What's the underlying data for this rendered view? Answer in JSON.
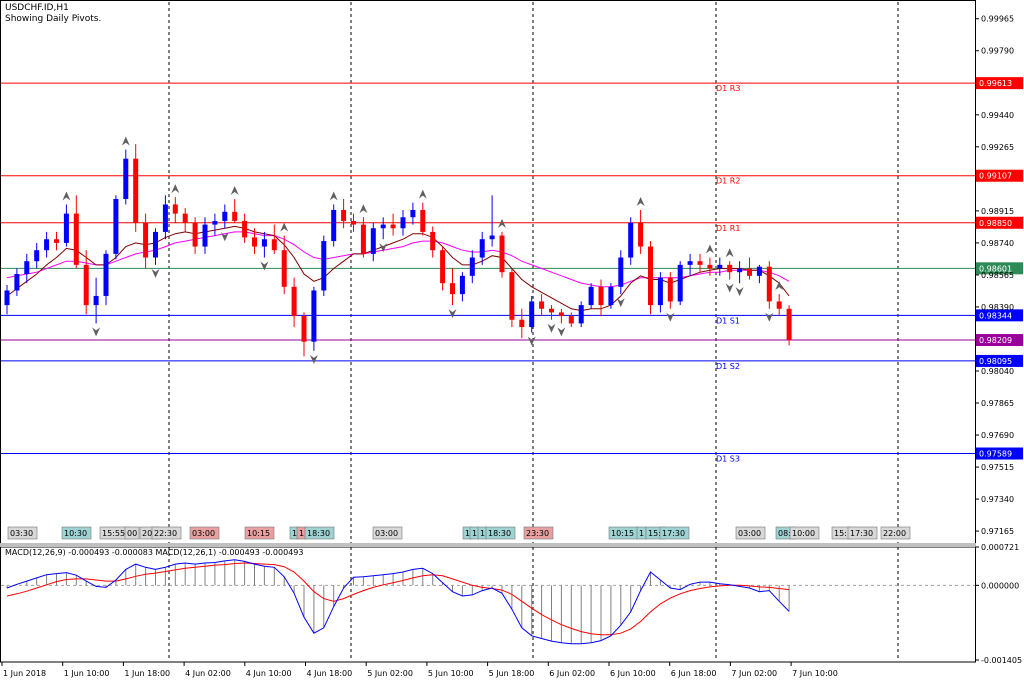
{
  "header": {
    "symbol": "USDCHF.ID,H1",
    "subtitle": "Showing Daily Pivots."
  },
  "price_axis": {
    "ticks": [
      "0.99965",
      "0.99790",
      "0.99440",
      "0.99265",
      "0.98915",
      "0.98740",
      "0.98565",
      "0.98390",
      "0.98040",
      "0.97865",
      "0.97690",
      "0.97515",
      "0.97340",
      "0.97165"
    ]
  },
  "macd_axis": {
    "ticks": [
      "0.000721",
      "0.000000",
      "-0.001405"
    ]
  },
  "time_axis": {
    "labels": [
      "1 Jun 2018",
      "1 Jun 10:00",
      "1 Jun 18:00",
      "4 Jun 02:00",
      "4 Jun 10:00",
      "4 Jun 18:00",
      "5 Jun 02:00",
      "5 Jun 10:00",
      "5 Jun 18:00",
      "6 Jun 02:00",
      "6 Jun 10:00",
      "6 Jun 18:00",
      "7 Jun 02:00",
      "7 Jun 10:00"
    ]
  },
  "pivots": [
    {
      "name": "D1 R3",
      "value": "0.99613",
      "color": "#ff0000"
    },
    {
      "name": "D1 R2",
      "value": "0.99107",
      "color": "#ff0000"
    },
    {
      "name": "D1 R1",
      "value": "0.98850",
      "color": "#ff0000"
    },
    {
      "name": "",
      "value": "0.98601",
      "color": "#2e8b57"
    },
    {
      "name": "D1 S1",
      "value": "0.98344",
      "color": "#0000ff"
    },
    {
      "name": "D1 S2",
      "value": "0.98095",
      "color": "#0000ff"
    },
    {
      "name": "D1 S3",
      "value": "0.97589",
      "color": "#0000ff"
    }
  ],
  "current_price": {
    "value": "0.98209",
    "color": "#990099"
  },
  "session_tags": [
    {
      "text": "03:30",
      "color": "#d8d8d8"
    },
    {
      "text": "10:30",
      "color": "#9fd3d3"
    },
    {
      "text": "15:55",
      "color": "#d8d8d8"
    },
    {
      "text": "00",
      "color": "#d8d8d8"
    },
    {
      "text": "20:",
      "color": "#d8d8d8"
    },
    {
      "text": "22:30",
      "color": "#d8d8d8"
    },
    {
      "text": "03:00",
      "color": "#e8a0a0"
    },
    {
      "text": "10:15",
      "color": "#e8a0a0"
    },
    {
      "text": "1",
      "color": "#9fd3d3"
    },
    {
      "text": "1",
      "color": "#e8a0a0"
    },
    {
      "text": "18:30",
      "color": "#9fd3d3"
    },
    {
      "text": "03:00",
      "color": "#d8d8d8"
    },
    {
      "text": "1",
      "color": "#9fd3d3"
    },
    {
      "text": "1",
      "color": "#9fd3d3"
    },
    {
      "text": "1",
      "color": "#9fd3d3"
    },
    {
      "text": "18:30",
      "color": "#9fd3d3"
    },
    {
      "text": "23:30",
      "color": "#e8a0a0"
    },
    {
      "text": "10:15",
      "color": "#9fd3d3"
    },
    {
      "text": "1",
      "color": "#9fd3d3"
    },
    {
      "text": "15:",
      "color": "#9fd3d3"
    },
    {
      "text": "17:30",
      "color": "#9fd3d3"
    },
    {
      "text": "03:00",
      "color": "#d8d8d8"
    },
    {
      "text": "08:",
      "color": "#9fd3d3"
    },
    {
      "text": "10:00",
      "color": "#d8d8d8"
    },
    {
      "text": "15:",
      "color": "#d8d8d8"
    },
    {
      "text": "17:30",
      "color": "#d8d8d8"
    },
    {
      "text": "22:00",
      "color": "#d8d8d8"
    }
  ],
  "macd": {
    "label": "MACD(12,26,9) -0.000493 -0.000083 MACD(12,26,1) -0.000493 -0.000493",
    "colors": {
      "histogram": "#808080",
      "macd": "#0000ff",
      "signal": "#ff0000"
    }
  },
  "colors": {
    "bull": "#0000ff",
    "bear": "#ff0000",
    "ma_fast": "#800000",
    "ma_slow": "#ff00ff",
    "grid": "#000000"
  },
  "chart_data": {
    "type": "candlestick",
    "timeframe": "H1",
    "ylim": [
      0.971,
      1.0004
    ],
    "candles": [
      {
        "o": 0.984,
        "h": 0.9851,
        "l": 0.9835,
        "c": 0.9848
      },
      {
        "o": 0.9848,
        "h": 0.986,
        "l": 0.9845,
        "c": 0.9857
      },
      {
        "o": 0.9857,
        "h": 0.9868,
        "l": 0.9852,
        "c": 0.9864
      },
      {
        "o": 0.9864,
        "h": 0.9874,
        "l": 0.986,
        "c": 0.987
      },
      {
        "o": 0.987,
        "h": 0.988,
        "l": 0.9866,
        "c": 0.9876
      },
      {
        "o": 0.9876,
        "h": 0.988,
        "l": 0.987,
        "c": 0.9874
      },
      {
        "o": 0.9874,
        "h": 0.9895,
        "l": 0.9872,
        "c": 0.989
      },
      {
        "o": 0.989,
        "h": 0.99,
        "l": 0.986,
        "c": 0.9862
      },
      {
        "o": 0.9862,
        "h": 0.987,
        "l": 0.9835,
        "c": 0.984
      },
      {
        "o": 0.984,
        "h": 0.9855,
        "l": 0.983,
        "c": 0.9845
      },
      {
        "o": 0.9845,
        "h": 0.987,
        "l": 0.984,
        "c": 0.9868
      },
      {
        "o": 0.9868,
        "h": 0.99,
        "l": 0.9865,
        "c": 0.9898
      },
      {
        "o": 0.9898,
        "h": 0.9925,
        "l": 0.9895,
        "c": 0.992
      },
      {
        "o": 0.992,
        "h": 0.9928,
        "l": 0.988,
        "c": 0.9885
      },
      {
        "o": 0.9885,
        "h": 0.989,
        "l": 0.986,
        "c": 0.9866
      },
      {
        "o": 0.9866,
        "h": 0.9882,
        "l": 0.9862,
        "c": 0.988
      },
      {
        "o": 0.988,
        "h": 0.99,
        "l": 0.9876,
        "c": 0.9895
      },
      {
        "o": 0.9895,
        "h": 0.9899,
        "l": 0.9885,
        "c": 0.989
      },
      {
        "o": 0.989,
        "h": 0.9893,
        "l": 0.988,
        "c": 0.9885
      },
      {
        "o": 0.9885,
        "h": 0.9888,
        "l": 0.9868,
        "c": 0.9872
      },
      {
        "o": 0.9872,
        "h": 0.9888,
        "l": 0.9868,
        "c": 0.9884
      },
      {
        "o": 0.9884,
        "h": 0.989,
        "l": 0.9878,
        "c": 0.9886
      },
      {
        "o": 0.9886,
        "h": 0.9895,
        "l": 0.9882,
        "c": 0.9891
      },
      {
        "o": 0.9891,
        "h": 0.9898,
        "l": 0.9885,
        "c": 0.9886
      },
      {
        "o": 0.9886,
        "h": 0.989,
        "l": 0.9874,
        "c": 0.9877
      },
      {
        "o": 0.9877,
        "h": 0.9882,
        "l": 0.9868,
        "c": 0.9872
      },
      {
        "o": 0.9872,
        "h": 0.988,
        "l": 0.9866,
        "c": 0.9876
      },
      {
        "o": 0.9876,
        "h": 0.9884,
        "l": 0.9868,
        "c": 0.987
      },
      {
        "o": 0.987,
        "h": 0.9878,
        "l": 0.9846,
        "c": 0.985
      },
      {
        "o": 0.985,
        "h": 0.9855,
        "l": 0.9828,
        "c": 0.9834
      },
      {
        "o": 0.9834,
        "h": 0.9836,
        "l": 0.9812,
        "c": 0.982
      },
      {
        "o": 0.982,
        "h": 0.985,
        "l": 0.9815,
        "c": 0.9848
      },
      {
        "o": 0.9848,
        "h": 0.9878,
        "l": 0.9845,
        "c": 0.9875
      },
      {
        "o": 0.9875,
        "h": 0.9895,
        "l": 0.9872,
        "c": 0.9892
      },
      {
        "o": 0.9892,
        "h": 0.9898,
        "l": 0.9882,
        "c": 0.9886
      },
      {
        "o": 0.9886,
        "h": 0.989,
        "l": 0.988,
        "c": 0.9884
      },
      {
        "o": 0.9884,
        "h": 0.9888,
        "l": 0.9866,
        "c": 0.9868
      },
      {
        "o": 0.9868,
        "h": 0.9885,
        "l": 0.9864,
        "c": 0.9882
      },
      {
        "o": 0.9882,
        "h": 0.9888,
        "l": 0.9876,
        "c": 0.9884
      },
      {
        "o": 0.9884,
        "h": 0.989,
        "l": 0.9878,
        "c": 0.9882
      },
      {
        "o": 0.9882,
        "h": 0.9892,
        "l": 0.9878,
        "c": 0.9888
      },
      {
        "o": 0.9888,
        "h": 0.9896,
        "l": 0.9884,
        "c": 0.9892
      },
      {
        "o": 0.9892,
        "h": 0.9896,
        "l": 0.9878,
        "c": 0.988
      },
      {
        "o": 0.988,
        "h": 0.9883,
        "l": 0.9866,
        "c": 0.987
      },
      {
        "o": 0.987,
        "h": 0.9872,
        "l": 0.9848,
        "c": 0.9852
      },
      {
        "o": 0.9852,
        "h": 0.986,
        "l": 0.984,
        "c": 0.9846
      },
      {
        "o": 0.9846,
        "h": 0.9858,
        "l": 0.9842,
        "c": 0.9856
      },
      {
        "o": 0.9856,
        "h": 0.987,
        "l": 0.9852,
        "c": 0.9866
      },
      {
        "o": 0.9866,
        "h": 0.988,
        "l": 0.9862,
        "c": 0.9876
      },
      {
        "o": 0.9876,
        "h": 0.99,
        "l": 0.9872,
        "c": 0.9878
      },
      {
        "o": 0.9878,
        "h": 0.988,
        "l": 0.9855,
        "c": 0.9858
      },
      {
        "o": 0.9858,
        "h": 0.986,
        "l": 0.9828,
        "c": 0.9832
      },
      {
        "o": 0.9832,
        "h": 0.9838,
        "l": 0.9822,
        "c": 0.9828
      },
      {
        "o": 0.9828,
        "h": 0.9845,
        "l": 0.9825,
        "c": 0.9842
      },
      {
        "o": 0.9842,
        "h": 0.9846,
        "l": 0.9834,
        "c": 0.9838
      },
      {
        "o": 0.9838,
        "h": 0.984,
        "l": 0.9832,
        "c": 0.9836
      },
      {
        "o": 0.9836,
        "h": 0.9838,
        "l": 0.983,
        "c": 0.9834
      },
      {
        "o": 0.9834,
        "h": 0.9836,
        "l": 0.9828,
        "c": 0.983
      },
      {
        "o": 0.983,
        "h": 0.9842,
        "l": 0.9828,
        "c": 0.984
      },
      {
        "o": 0.984,
        "h": 0.9852,
        "l": 0.9838,
        "c": 0.985
      },
      {
        "o": 0.985,
        "h": 0.9854,
        "l": 0.9834,
        "c": 0.984
      },
      {
        "o": 0.984,
        "h": 0.9852,
        "l": 0.9838,
        "c": 0.985
      },
      {
        "o": 0.985,
        "h": 0.987,
        "l": 0.9846,
        "c": 0.9866
      },
      {
        "o": 0.9866,
        "h": 0.9888,
        "l": 0.9862,
        "c": 0.9885
      },
      {
        "o": 0.9885,
        "h": 0.9892,
        "l": 0.9868,
        "c": 0.9872
      },
      {
        "o": 0.9872,
        "h": 0.9875,
        "l": 0.9835,
        "c": 0.984
      },
      {
        "o": 0.984,
        "h": 0.9858,
        "l": 0.9836,
        "c": 0.9855
      },
      {
        "o": 0.9855,
        "h": 0.9858,
        "l": 0.9838,
        "c": 0.9842
      },
      {
        "o": 0.9842,
        "h": 0.9864,
        "l": 0.984,
        "c": 0.9862
      },
      {
        "o": 0.9862,
        "h": 0.9868,
        "l": 0.9856,
        "c": 0.9864
      },
      {
        "o": 0.9864,
        "h": 0.9868,
        "l": 0.9858,
        "c": 0.9862
      },
      {
        "o": 0.9862,
        "h": 0.9866,
        "l": 0.9856,
        "c": 0.986
      },
      {
        "o": 0.986,
        "h": 0.9866,
        "l": 0.9856,
        "c": 0.9862
      },
      {
        "o": 0.9862,
        "h": 0.9864,
        "l": 0.9854,
        "c": 0.9858
      },
      {
        "o": 0.9858,
        "h": 0.9864,
        "l": 0.9852,
        "c": 0.986
      },
      {
        "o": 0.986,
        "h": 0.9866,
        "l": 0.9854,
        "c": 0.9856
      },
      {
        "o": 0.9856,
        "h": 0.9862,
        "l": 0.9852,
        "c": 0.9861
      },
      {
        "o": 0.9861,
        "h": 0.9864,
        "l": 0.9838,
        "c": 0.9842
      },
      {
        "o": 0.9842,
        "h": 0.9846,
        "l": 0.9834,
        "c": 0.9838
      },
      {
        "o": 0.9838,
        "h": 0.984,
        "l": 0.9818,
        "c": 0.9821
      }
    ],
    "ma_fast": [
      0.9845,
      0.9849,
      0.9853,
      0.9857,
      0.9862,
      0.9866,
      0.9871,
      0.987,
      0.9866,
      0.9862,
      0.9862,
      0.9866,
      0.9872,
      0.9874,
      0.9873,
      0.9874,
      0.9877,
      0.9879,
      0.988,
      0.9879,
      0.988,
      0.9881,
      0.9882,
      0.9883,
      0.9882,
      0.988,
      0.9879,
      0.9878,
      0.9873,
      0.9866,
      0.9857,
      0.9853,
      0.9855,
      0.986,
      0.9864,
      0.9868,
      0.9868,
      0.987,
      0.9872,
      0.9874,
      0.9876,
      0.9879,
      0.9879,
      0.9877,
      0.9872,
      0.9866,
      0.9862,
      0.9862,
      0.9864,
      0.9867,
      0.9866,
      0.986,
      0.9854,
      0.985,
      0.9847,
      0.9844,
      0.9841,
      0.9838,
      0.9837,
      0.9838,
      0.9838,
      0.984,
      0.9845,
      0.9852,
      0.9856,
      0.9854,
      0.9854,
      0.9852,
      0.9854,
      0.9856,
      0.9858,
      0.9859,
      0.986,
      0.986,
      0.986,
      0.9859,
      0.9859,
      0.9856,
      0.9852,
      0.9845
    ],
    "ma_slow": [
      0.9855,
      0.9856,
      0.9857,
      0.9858,
      0.986,
      0.9862,
      0.9864,
      0.9864,
      0.9863,
      0.9862,
      0.9862,
      0.9864,
      0.9866,
      0.9868,
      0.9869,
      0.987,
      0.9872,
      0.9874,
      0.9875,
      0.9876,
      0.9877,
      0.9878,
      0.9879,
      0.988,
      0.988,
      0.9879,
      0.9878,
      0.9878,
      0.9876,
      0.9873,
      0.9869,
      0.9866,
      0.9865,
      0.9866,
      0.9867,
      0.9868,
      0.9868,
      0.9869,
      0.987,
      0.9871,
      0.9872,
      0.9874,
      0.9875,
      0.9875,
      0.9874,
      0.9872,
      0.987,
      0.9869,
      0.9869,
      0.987,
      0.9869,
      0.9867,
      0.9864,
      0.9862,
      0.986,
      0.9858,
      0.9856,
      0.9854,
      0.9852,
      0.9851,
      0.985,
      0.985,
      0.9851,
      0.9853,
      0.9855,
      0.9855,
      0.9855,
      0.9855,
      0.9855,
      0.9856,
      0.9857,
      0.9858,
      0.9858,
      0.9859,
      0.9859,
      0.9859,
      0.9859,
      0.9858,
      0.9856,
      0.9853
    ],
    "fractals_up": [
      6,
      12,
      17,
      23,
      28,
      33,
      36,
      42,
      50,
      64,
      71,
      73,
      78
    ],
    "fractals_down": [
      9,
      15,
      22,
      26,
      31,
      38,
      45,
      53,
      55,
      56,
      62,
      67,
      73,
      74,
      77
    ],
    "macd_ylim": [
      -0.001405,
      0.000721
    ],
    "macd_main": [
      -5e-05,
      2e-05,
      8e-05,
      0.00014,
      0.0002,
      0.00022,
      0.00024,
      0.00019,
      8e-05,
      -2e-05,
      -4e-05,
      0.0001,
      0.0003,
      0.0004,
      0.00034,
      0.0003,
      0.00034,
      0.0004,
      0.00042,
      0.0004,
      0.00042,
      0.00043,
      0.00046,
      0.00048,
      0.00045,
      0.0004,
      0.00036,
      0.00034,
      0.00016,
      -0.00015,
      -0.0006,
      -0.0009,
      -0.0008,
      -0.0004,
      -5e-05,
      0.00015,
      0.00016,
      0.00018,
      0.0002,
      0.00022,
      0.00025,
      0.0003,
      0.00032,
      0.00022,
      5e-05,
      -0.00012,
      -0.0002,
      -0.00018,
      -0.0001,
      -5e-05,
      -0.00015,
      -0.00045,
      -0.0008,
      -0.00095,
      -0.001,
      -0.00105,
      -0.00108,
      -0.0011,
      -0.0011,
      -0.00108,
      -0.00104,
      -0.00095,
      -0.00075,
      -0.0005,
      -0.0001,
      0.00025,
      0.0001,
      -5e-05,
      -8e-05,
      2e-05,
      6e-05,
      6e-05,
      3e-05,
      1e-05,
      -2e-05,
      -5e-05,
      -0.00012,
      -0.0001,
      -0.0003,
      -0.00049
    ],
    "macd_signal": [
      -0.0002,
      -0.00016,
      -0.00011,
      -5e-05,
      1e-05,
      7e-05,
      0.00011,
      0.00012,
      0.00012,
      0.0001,
      8e-05,
      8e-05,
      0.00012,
      0.00017,
      0.00021,
      0.00023,
      0.00026,
      0.00029,
      0.00032,
      0.00034,
      0.00036,
      0.00038,
      0.00039,
      0.00041,
      0.00042,
      0.00041,
      0.0004,
      0.00039,
      0.00035,
      0.00025,
      8e-05,
      -0.00012,
      -0.00025,
      -0.0003,
      -0.00025,
      -0.00017,
      -0.0001,
      -4e-05,
      1e-05,
      5e-05,
      9e-05,
      0.00014,
      0.00018,
      0.0002,
      0.00018,
      0.00012,
      6e-05,
      0.0,
      -4e-05,
      -6e-05,
      -9e-05,
      -0.00017,
      -0.0003,
      -0.00043,
      -0.00055,
      -0.00065,
      -0.00074,
      -0.00081,
      -0.00087,
      -0.00091,
      -0.00093,
      -0.00093,
      -0.0009,
      -0.00082,
      -0.00068,
      -0.0005,
      -0.00035,
      -0.00024,
      -0.00016,
      -0.0001,
      -6e-05,
      -3e-05,
      -1e-05,
      0.0,
      0.0,
      -1e-05,
      -3e-05,
      -4e-05,
      -6e-05,
      -8e-05
    ]
  }
}
